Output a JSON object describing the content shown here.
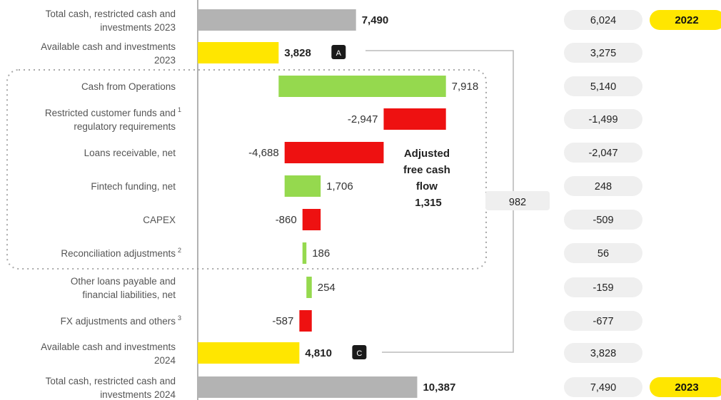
{
  "chart_data": {
    "type": "bar",
    "subtype": "waterfall",
    "categories": [
      {
        "lines": [
          "Total cash, restricted cash and",
          "investments 2023"
        ],
        "sup": ""
      },
      {
        "lines": [
          "Available cash and investments",
          "2023"
        ],
        "sup": ""
      },
      {
        "lines": [
          "Cash from Operations"
        ],
        "sup": ""
      },
      {
        "lines": [
          "Restricted customer funds and",
          "regulatory requirements"
        ],
        "sup": "1"
      },
      {
        "lines": [
          "Loans receivable, net"
        ],
        "sup": ""
      },
      {
        "lines": [
          "Fintech funding, net"
        ],
        "sup": ""
      },
      {
        "lines": [
          "CAPEX"
        ],
        "sup": ""
      },
      {
        "lines": [
          "Reconciliation adjustments"
        ],
        "sup": "2"
      },
      {
        "lines": [
          "Other loans payable and",
          "financial liabilities, net"
        ],
        "sup": ""
      },
      {
        "lines": [
          "FX adjustments and others"
        ],
        "sup": "3"
      },
      {
        "lines": [
          "Available cash and investments",
          "2024"
        ],
        "sup": ""
      },
      {
        "lines": [
          "Total cash, restricted cash and",
          "investments 2024"
        ],
        "sup": ""
      }
    ],
    "values": [
      7490,
      3828,
      7918,
      -2947,
      -4688,
      1706,
      -860,
      186,
      254,
      -587,
      4810,
      10387
    ],
    "value_labels": [
      "7,490",
      "3,828",
      "7,918",
      "-2,947",
      "-4,688",
      "1,706",
      "-860",
      "186",
      "254",
      "-587",
      "4,810",
      "10,387"
    ],
    "bar_kinds": [
      "total",
      "subtotal",
      "increase",
      "decrease",
      "decrease",
      "increase",
      "decrease",
      "increase",
      "increase",
      "decrease",
      "subtotal",
      "total"
    ],
    "bold_value_labels": [
      true,
      true,
      false,
      false,
      false,
      false,
      false,
      false,
      false,
      false,
      true,
      true
    ],
    "badges": [
      {
        "row": 1,
        "text": "A"
      },
      {
        "row": 10,
        "text": "C"
      }
    ],
    "comparison_values": [
      "6,024",
      "3,275",
      "5,140",
      "-1,499",
      "-2,047",
      "248",
      "-509",
      "56",
      "-159",
      "-677",
      "3,828",
      "7,490"
    ],
    "year_tags": [
      {
        "row": 0,
        "text": "2022"
      },
      {
        "row": 11,
        "text": "2023"
      }
    ],
    "bracket_label": "982",
    "annotation": {
      "lines": [
        "Adjusted",
        "free cash",
        "flow",
        "1,315"
      ]
    },
    "colors": {
      "total": "#b3b3b3",
      "subtotal": "#ffe600",
      "increase": "#95d94e",
      "decrease": "#ee1111",
      "pill": "#efefef",
      "year_tag": "#ffe600",
      "badge": "#1a1a1a",
      "connector": "#bbbbbb",
      "dotted_box": "#a8a8a8",
      "axis": "#888888"
    }
  }
}
